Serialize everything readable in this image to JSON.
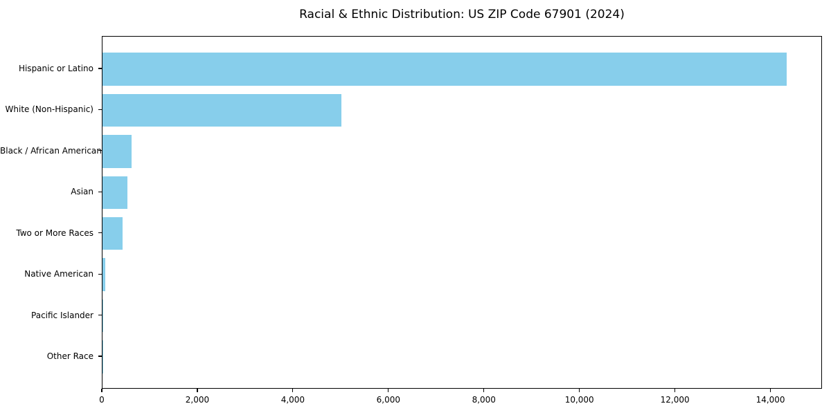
{
  "figure": {
    "title": "Racial & Ethnic Distribution: US ZIP Code 67901 (2024)"
  },
  "chart_data": {
    "type": "bar",
    "orientation": "horizontal",
    "title": "Racial & Ethnic Distribution: US ZIP Code 67901 (2024)",
    "categories": [
      "Hispanic or Latino",
      "White (Non-Hispanic)",
      "Black / African American",
      "Asian",
      "Two or More Races",
      "Native American",
      "Pacific Islander",
      "Other Race"
    ],
    "values": [
      14330,
      5000,
      615,
      520,
      425,
      65,
      12,
      5
    ],
    "xlabel": "",
    "ylabel": "",
    "xlim": [
      0,
      15050
    ],
    "x_ticks": [
      0,
      2000,
      4000,
      6000,
      8000,
      10000,
      12000,
      14000
    ],
    "x_tick_labels": [
      "0",
      "2,000",
      "4,000",
      "6,000",
      "8,000",
      "10,000",
      "12,000",
      "14,000"
    ],
    "bar_color": "#87CEEB",
    "spine_color": "#000000",
    "grid": false,
    "legend": null
  }
}
